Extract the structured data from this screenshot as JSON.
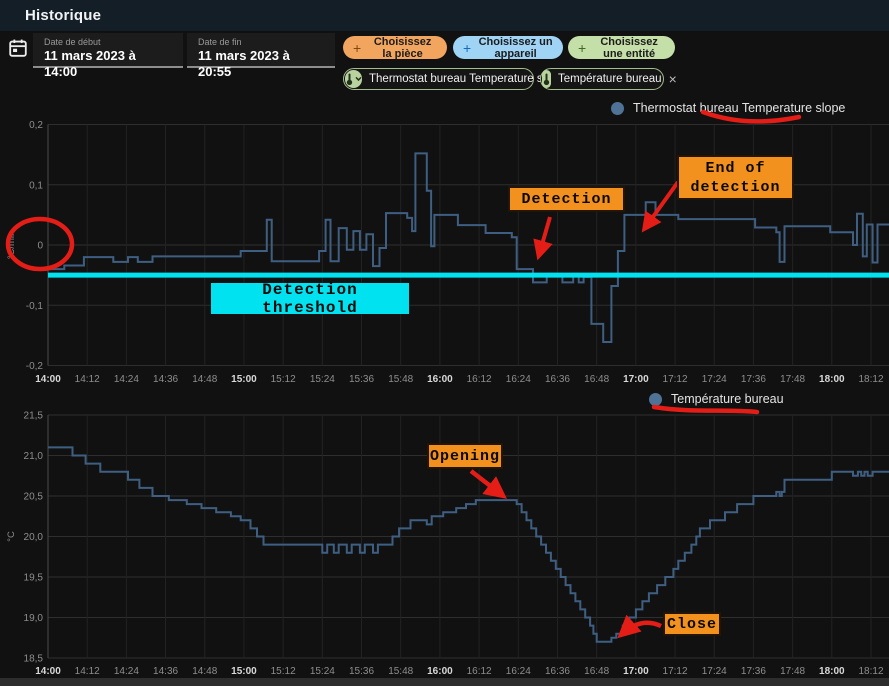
{
  "header": {
    "title": "Historique"
  },
  "icons": {
    "plus": "+",
    "close": "×",
    "calendar": "calendar",
    "thermometer": "thermometer",
    "chevron_down": "⌄"
  },
  "toolbar": {
    "date_start": {
      "label": "Date de début",
      "value": "11 mars 2023 à 14:00"
    },
    "date_end": {
      "label": "Date de fin",
      "value": "11 mars 2023 à 20:55"
    },
    "buttons": [
      {
        "label": "Choisissez la pièce",
        "color": "#f2a55f"
      },
      {
        "label": "Choisissez un appareil",
        "color": "#a0d4f5"
      },
      {
        "label": "Choisissez une entité",
        "color": "#c4dfa8"
      }
    ],
    "chips": [
      {
        "label": "Thermostat bureau Temperature slope",
        "close": "×"
      },
      {
        "label": "Température bureau",
        "close": "×"
      }
    ]
  },
  "annotations": {
    "detection": "Detection",
    "end_detection": "End of\ndetection",
    "threshold_label": "Detection threshold",
    "opening": "Opening",
    "close": "Close"
  },
  "colors": {
    "header_bg": "#141e27",
    "page_bg": "#111111",
    "line_blue": "#3e5f82",
    "legend_dot": "#4e7396",
    "threshold_cyan": "#00e2ef",
    "annotation_orange": "#f2911d",
    "hand_drawn_red": "#e41e17",
    "grid": "#232323",
    "grid_h": "#2e2e2e",
    "axis_line": "#4a4a4a",
    "tick_text": "#8e8e8e",
    "tick_text_bold": "#d9d9d9"
  },
  "chart_data": [
    {
      "type": "line",
      "step": true,
      "title": "Thermostat bureau Temperature slope",
      "ylabel": "°C/min",
      "ylim": [
        -0.2,
        0.2
      ],
      "yticks": [
        {
          "v": 0.2,
          "label": "0,2"
        },
        {
          "v": 0.1,
          "label": "0,1"
        },
        {
          "v": 0,
          "label": "0"
        },
        {
          "v": -0.1,
          "label": "-0,1"
        },
        {
          "v": -0.2,
          "label": "-0,2"
        }
      ],
      "x_ticks": [
        "14:00",
        "14:12",
        "14:24",
        "14:36",
        "14:48",
        "15:00",
        "15:12",
        "15:24",
        "15:36",
        "15:48",
        "16:00",
        "16:12",
        "16:24",
        "16:36",
        "16:48",
        "17:00",
        "17:12",
        "17:24",
        "17:36",
        "17:48",
        "18:00",
        "18:12"
      ],
      "x_unit": "minutes after 14:00",
      "threshold": {
        "value": -0.05,
        "label": "Detection threshold"
      },
      "series": [
        {
          "name": "Thermostat bureau Temperature slope",
          "points": [
            [
              0,
              -0.04
            ],
            [
              5,
              -0.034
            ],
            [
              11,
              -0.02
            ],
            [
              20,
              -0.028
            ],
            [
              24.5,
              -0.02
            ],
            [
              27.5,
              -0.028
            ],
            [
              32,
              -0.019
            ],
            [
              59,
              -0.01
            ],
            [
              67,
              0.042
            ],
            [
              68.5,
              -0.027
            ],
            [
              83,
              -0.01
            ],
            [
              85,
              0.042
            ],
            [
              86.5,
              -0.027
            ],
            [
              89,
              0.028
            ],
            [
              91.5,
              -0.008
            ],
            [
              93.5,
              0.023
            ],
            [
              95.5,
              -0.008
            ],
            [
              97.5,
              0.018
            ],
            [
              99.5,
              -0.035
            ],
            [
              101.5,
              -0.005
            ],
            [
              103.5,
              0.053
            ],
            [
              110,
              0.045
            ],
            [
              111.5,
              0.023
            ],
            [
              112.5,
              0.152
            ],
            [
              116,
              0.09
            ],
            [
              117.3,
              -0.002
            ],
            [
              118.3,
              0.05
            ],
            [
              125.5,
              0.033
            ],
            [
              134,
              0.02
            ],
            [
              142,
              0.013
            ],
            [
              143.5,
              -0.04
            ],
            [
              148.5,
              -0.062
            ],
            [
              152.7,
              -0.048
            ],
            [
              157.5,
              -0.062
            ],
            [
              160.8,
              -0.048
            ],
            [
              162.5,
              -0.062
            ],
            [
              164,
              -0.053
            ],
            [
              166.4,
              -0.131
            ],
            [
              170,
              -0.161
            ],
            [
              172.5,
              -0.068
            ],
            [
              174.5,
              -0.01
            ],
            [
              176.5,
              0.05
            ],
            [
              183,
              0.071
            ],
            [
              186,
              0.05
            ],
            [
              193,
              0.043
            ],
            [
              216.5,
              0.029
            ],
            [
              223,
              0.021
            ],
            [
              224,
              -0.028
            ],
            [
              225.5,
              0.031
            ],
            [
              239.5,
              0.021
            ],
            [
              246.5,
              0
            ],
            [
              247.7,
              0.052
            ],
            [
              249.5,
              -0.019
            ],
            [
              250.7,
              0.034
            ],
            [
              252.5,
              -0.029
            ],
            [
              254,
              0.034
            ]
          ]
        }
      ]
    },
    {
      "type": "line",
      "step": true,
      "title": "Température bureau",
      "ylabel": "°C",
      "ylim": [
        18.5,
        21.5
      ],
      "yticks": [
        {
          "v": 21.5,
          "label": "21,5"
        },
        {
          "v": 21.0,
          "label": "21,0"
        },
        {
          "v": 20.5,
          "label": "20,5"
        },
        {
          "v": 20.0,
          "label": "20,0"
        },
        {
          "v": 19.5,
          "label": "19,5"
        },
        {
          "v": 19.0,
          "label": "19,0"
        },
        {
          "v": 18.5,
          "label": "18,5"
        }
      ],
      "x_ticks": [
        "14:00",
        "14:12",
        "14:24",
        "14:36",
        "14:48",
        "15:00",
        "15:12",
        "15:24",
        "15:36",
        "15:48",
        "16:00",
        "16:12",
        "16:24",
        "16:36",
        "16:48",
        "17:00",
        "17:12",
        "17:24",
        "17:36",
        "17:48",
        "18:00",
        "18:12"
      ],
      "x_unit": "minutes after 14:00",
      "series": [
        {
          "name": "Température bureau",
          "points": [
            [
              0,
              21.1
            ],
            [
              7.5,
              21.0
            ],
            [
              11.5,
              20.9
            ],
            [
              16,
              20.8
            ],
            [
              24.5,
              20.7
            ],
            [
              28,
              20.6
            ],
            [
              32,
              20.5
            ],
            [
              37,
              20.45
            ],
            [
              42.5,
              20.4
            ],
            [
              47,
              20.35
            ],
            [
              51.5,
              20.3
            ],
            [
              56,
              20.25
            ],
            [
              59,
              20.2
            ],
            [
              62,
              20.1
            ],
            [
              64,
              20.0
            ],
            [
              66,
              19.9
            ],
            [
              84,
              19.8
            ],
            [
              85.5,
              19.9
            ],
            [
              87.5,
              19.8
            ],
            [
              89,
              19.9
            ],
            [
              91.5,
              19.8
            ],
            [
              93,
              19.9
            ],
            [
              95.5,
              19.8
            ],
            [
              97,
              19.9
            ],
            [
              99.5,
              19.8
            ],
            [
              101,
              19.9
            ],
            [
              105.5,
              20.0
            ],
            [
              107.5,
              20.1
            ],
            [
              111,
              20.2
            ],
            [
              116,
              20.15
            ],
            [
              117.5,
              20.25
            ],
            [
              121,
              20.3
            ],
            [
              125,
              20.35
            ],
            [
              128,
              20.4
            ],
            [
              131,
              20.45
            ],
            [
              143.5,
              20.4
            ],
            [
              145,
              20.3
            ],
            [
              146.5,
              20.2
            ],
            [
              148,
              20.1
            ],
            [
              149.5,
              20.0
            ],
            [
              151,
              19.9
            ],
            [
              152.5,
              19.8
            ],
            [
              154,
              19.7
            ],
            [
              155.5,
              19.6
            ],
            [
              157,
              19.5
            ],
            [
              158.5,
              19.4
            ],
            [
              160,
              19.3
            ],
            [
              161.5,
              19.2
            ],
            [
              163,
              19.1
            ],
            [
              164.5,
              19.0
            ],
            [
              166,
              18.9
            ],
            [
              167,
              18.8
            ],
            [
              168,
              18.7
            ],
            [
              172.5,
              18.75
            ],
            [
              174,
              18.8
            ],
            [
              176,
              18.9
            ],
            [
              178,
              19.0
            ],
            [
              180,
              19.1
            ],
            [
              182,
              19.2
            ],
            [
              184,
              19.3
            ],
            [
              186.5,
              19.4
            ],
            [
              189,
              19.5
            ],
            [
              191.5,
              19.6
            ],
            [
              193,
              19.7
            ],
            [
              195,
              19.8
            ],
            [
              197,
              19.9
            ],
            [
              198.5,
              20.0
            ],
            [
              199.6,
              20.1
            ],
            [
              202.7,
              20.2
            ],
            [
              207.3,
              20.3
            ],
            [
              211,
              20.4
            ],
            [
              216,
              20.5
            ],
            [
              223,
              20.55
            ],
            [
              224,
              20.5
            ],
            [
              224.7,
              20.55
            ],
            [
              225.5,
              20.7
            ],
            [
              240,
              20.8
            ],
            [
              246.5,
              20.75
            ],
            [
              248,
              20.8
            ],
            [
              249,
              20.75
            ],
            [
              250,
              20.8
            ],
            [
              251,
              20.75
            ],
            [
              252.5,
              20.8
            ]
          ]
        }
      ]
    }
  ]
}
